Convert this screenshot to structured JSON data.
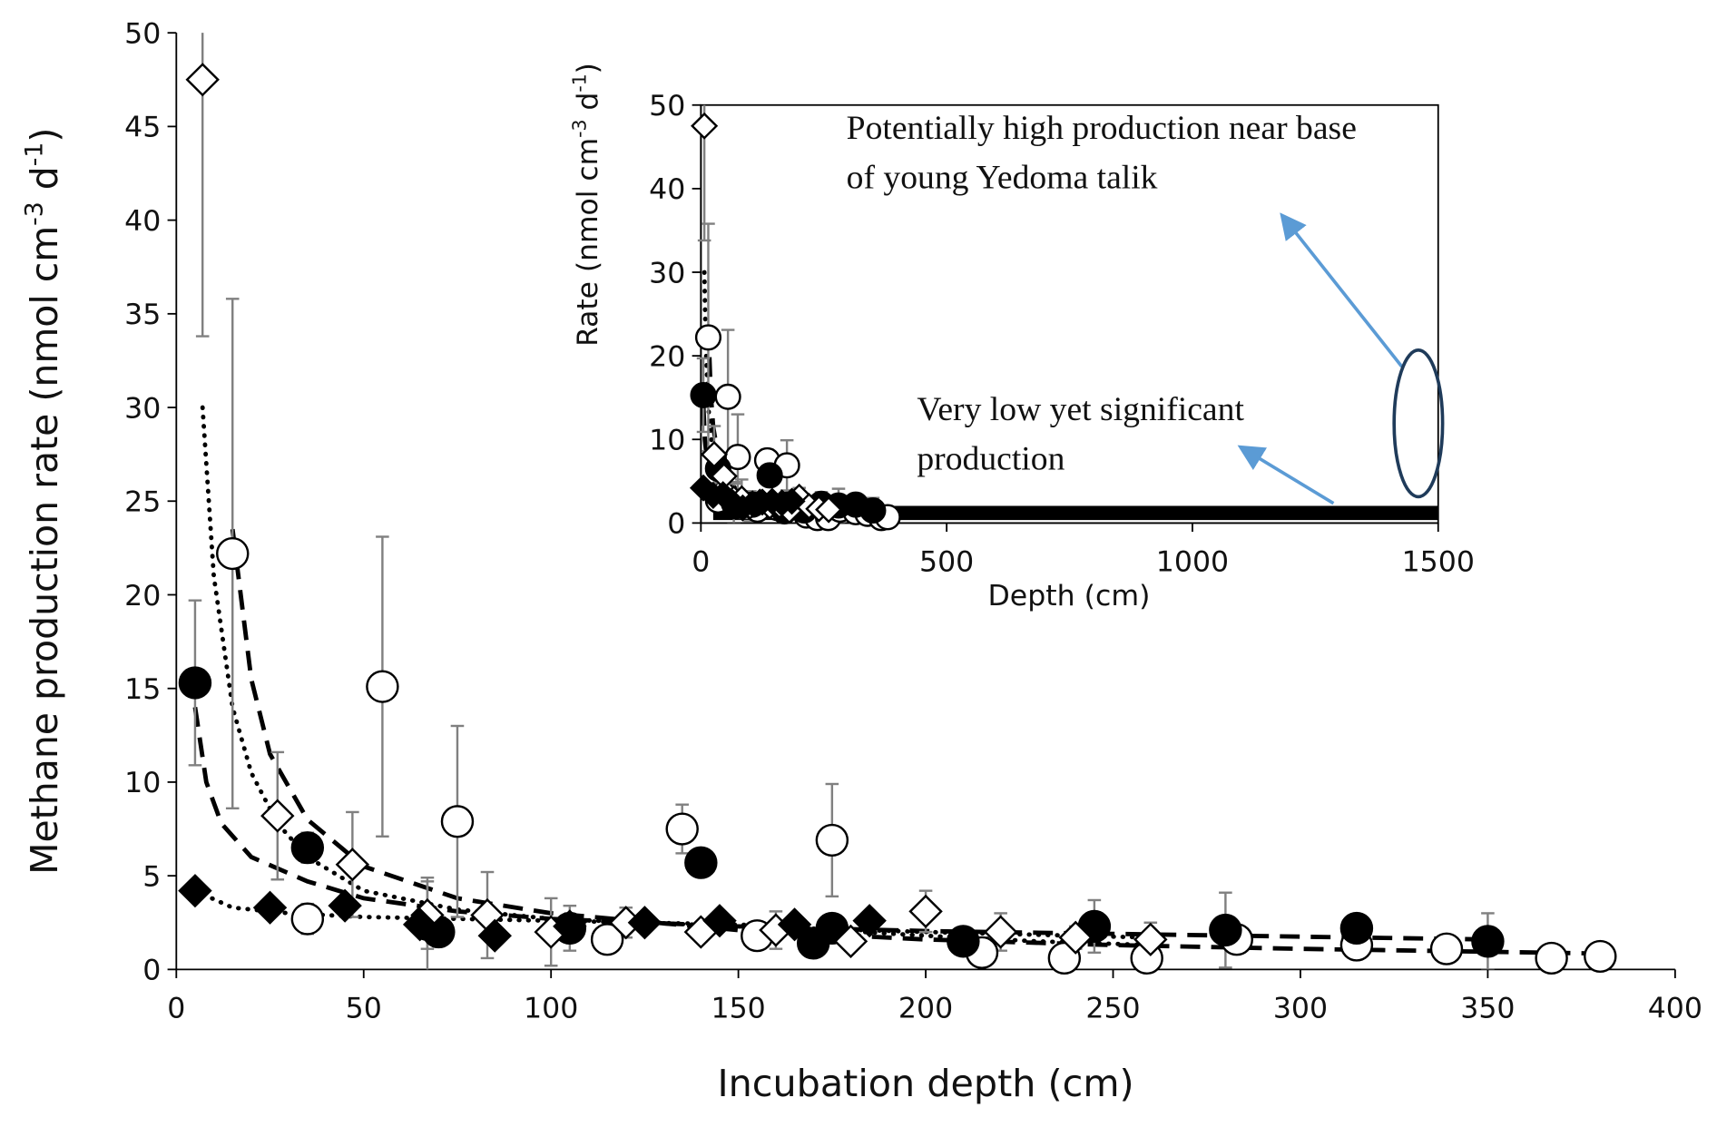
{
  "chart_data": [
    {
      "type": "scatter",
      "xlabel": "Incubation depth (cm)",
      "ylabel": [
        "Methane production rate (nmol cm",
        "-3",
        " d",
        "-1",
        ")"
      ],
      "xlim": [
        0,
        400
      ],
      "xticks": [
        0,
        50,
        100,
        150,
        200,
        250,
        300,
        350,
        400
      ],
      "ylim": [
        0,
        50
      ],
      "yticks": [
        0,
        5,
        10,
        15,
        20,
        25,
        30,
        35,
        40,
        45,
        50
      ],
      "color": "#000000",
      "error_color": "#808080",
      "series": [
        {
          "marker": "circle",
          "filled": false,
          "x": [
            15,
            35,
            55,
            75,
            115,
            135,
            155,
            175,
            215,
            237,
            259,
            283,
            315,
            339,
            367,
            380
          ],
          "values": [
            22.2,
            2.7,
            15.1,
            7.9,
            1.6,
            7.5,
            1.8,
            6.9,
            0.9,
            0.6,
            0.6,
            1.6,
            1.3,
            1.1,
            0.6,
            0.7
          ],
          "errors": [
            13.6,
            0.8,
            8,
            5.1,
            0.5,
            1.3,
            0.6,
            3,
            0.4,
            0.3,
            0.3,
            0.5,
            0.3,
            0.3,
            0.3,
            0.3
          ]
        },
        {
          "marker": "circle",
          "filled": true,
          "x": [
            5,
            35,
            67,
            70,
            105,
            140,
            170,
            175,
            210,
            245,
            280,
            315,
            350
          ],
          "values": [
            15.3,
            6.5,
            2.4,
            2.0,
            2.2,
            5.7,
            1.4,
            2.2,
            1.5,
            2.3,
            2.1,
            2.2,
            1.5
          ],
          "errors": [
            4.4,
            0.8,
            2.5,
            0.5,
            1.2,
            0.3,
            0.4,
            0.5,
            0.4,
            1.4,
            2.0,
            0.4,
            1.5
          ]
        },
        {
          "marker": "diamond",
          "filled": false,
          "x": [
            7,
            27,
            47,
            67,
            83,
            100,
            120,
            140,
            160,
            180,
            200,
            220,
            240,
            260
          ],
          "values": [
            47.5,
            8.2,
            5.6,
            2.9,
            2.9,
            2.0,
            2.5,
            2.0,
            2.1,
            1.5,
            3.1,
            2.0,
            1.7,
            1.6
          ],
          "errors": [
            13.7,
            3.4,
            2.8,
            1.8,
            2.3,
            1.8,
            0.8,
            0.5,
            1.0,
            0.5,
            1.1,
            1.0,
            0.6,
            0.9
          ]
        },
        {
          "marker": "diamond",
          "filled": true,
          "x": [
            5,
            25,
            45,
            65,
            85,
            105,
            125,
            145,
            165,
            185
          ],
          "values": [
            4.2,
            3.3,
            3.4,
            2.4,
            1.8,
            2.3,
            2.5,
            2.6,
            2.4,
            2.6
          ]
        }
      ],
      "trendlines": [
        {
          "style": "dotted",
          "x": [
            7,
            10,
            15,
            20,
            27,
            35,
            50,
            75,
            100,
            150,
            200,
            260
          ],
          "values": [
            30,
            21,
            14,
            10.5,
            7.8,
            6,
            4.2,
            3.2,
            2.7,
            2.3,
            2.0,
            1.7
          ]
        },
        {
          "style": "dashed",
          "x": [
            15,
            20,
            25,
            35,
            50,
            75,
            100,
            150,
            200,
            250,
            300,
            380
          ],
          "values": [
            23.5,
            15.5,
            11.5,
            8,
            5.5,
            3.8,
            3,
            2.1,
            1.6,
            1.3,
            1.1,
            0.85
          ]
        },
        {
          "style": "dashed",
          "x": [
            5,
            8,
            12,
            20,
            35,
            50,
            75,
            100,
            150,
            200,
            250,
            300,
            350
          ],
          "values": [
            14,
            10,
            7.8,
            6,
            4.7,
            3.8,
            3.1,
            2.7,
            2.3,
            2.05,
            1.9,
            1.75,
            1.6
          ]
        },
        {
          "style": "dotted",
          "x": [
            5,
            15,
            30,
            50,
            75,
            100,
            125,
            150,
            175,
            200,
            230,
            260
          ],
          "values": [
            4.2,
            3.3,
            3.0,
            2.8,
            2.7,
            2.6,
            2.5,
            2.4,
            2.1,
            1.8,
            1.5,
            1.3
          ]
        }
      ]
    },
    {
      "type": "scatter",
      "xlabel": "Depth (cm)",
      "ylabel": [
        "Rate (nmol cm",
        "-3",
        " d",
        "-1",
        ")"
      ],
      "xlim": [
        0,
        1500
      ],
      "xticks": [
        0,
        500,
        1000,
        1500
      ],
      "ylim": [
        0,
        50
      ],
      "yticks": [
        0,
        10,
        20,
        30,
        40,
        50
      ],
      "series": [
        {
          "style": "thick-line",
          "color": "#000000",
          "x": [
            25,
            1500
          ],
          "values": [
            1.2,
            1.2
          ]
        }
      ],
      "annotations": [
        {
          "lines": [
            "Potentially high production near base",
            "of young Yedoma talik"
          ]
        },
        {
          "lines": [
            "Very low yet significant",
            "production"
          ]
        }
      ]
    }
  ]
}
